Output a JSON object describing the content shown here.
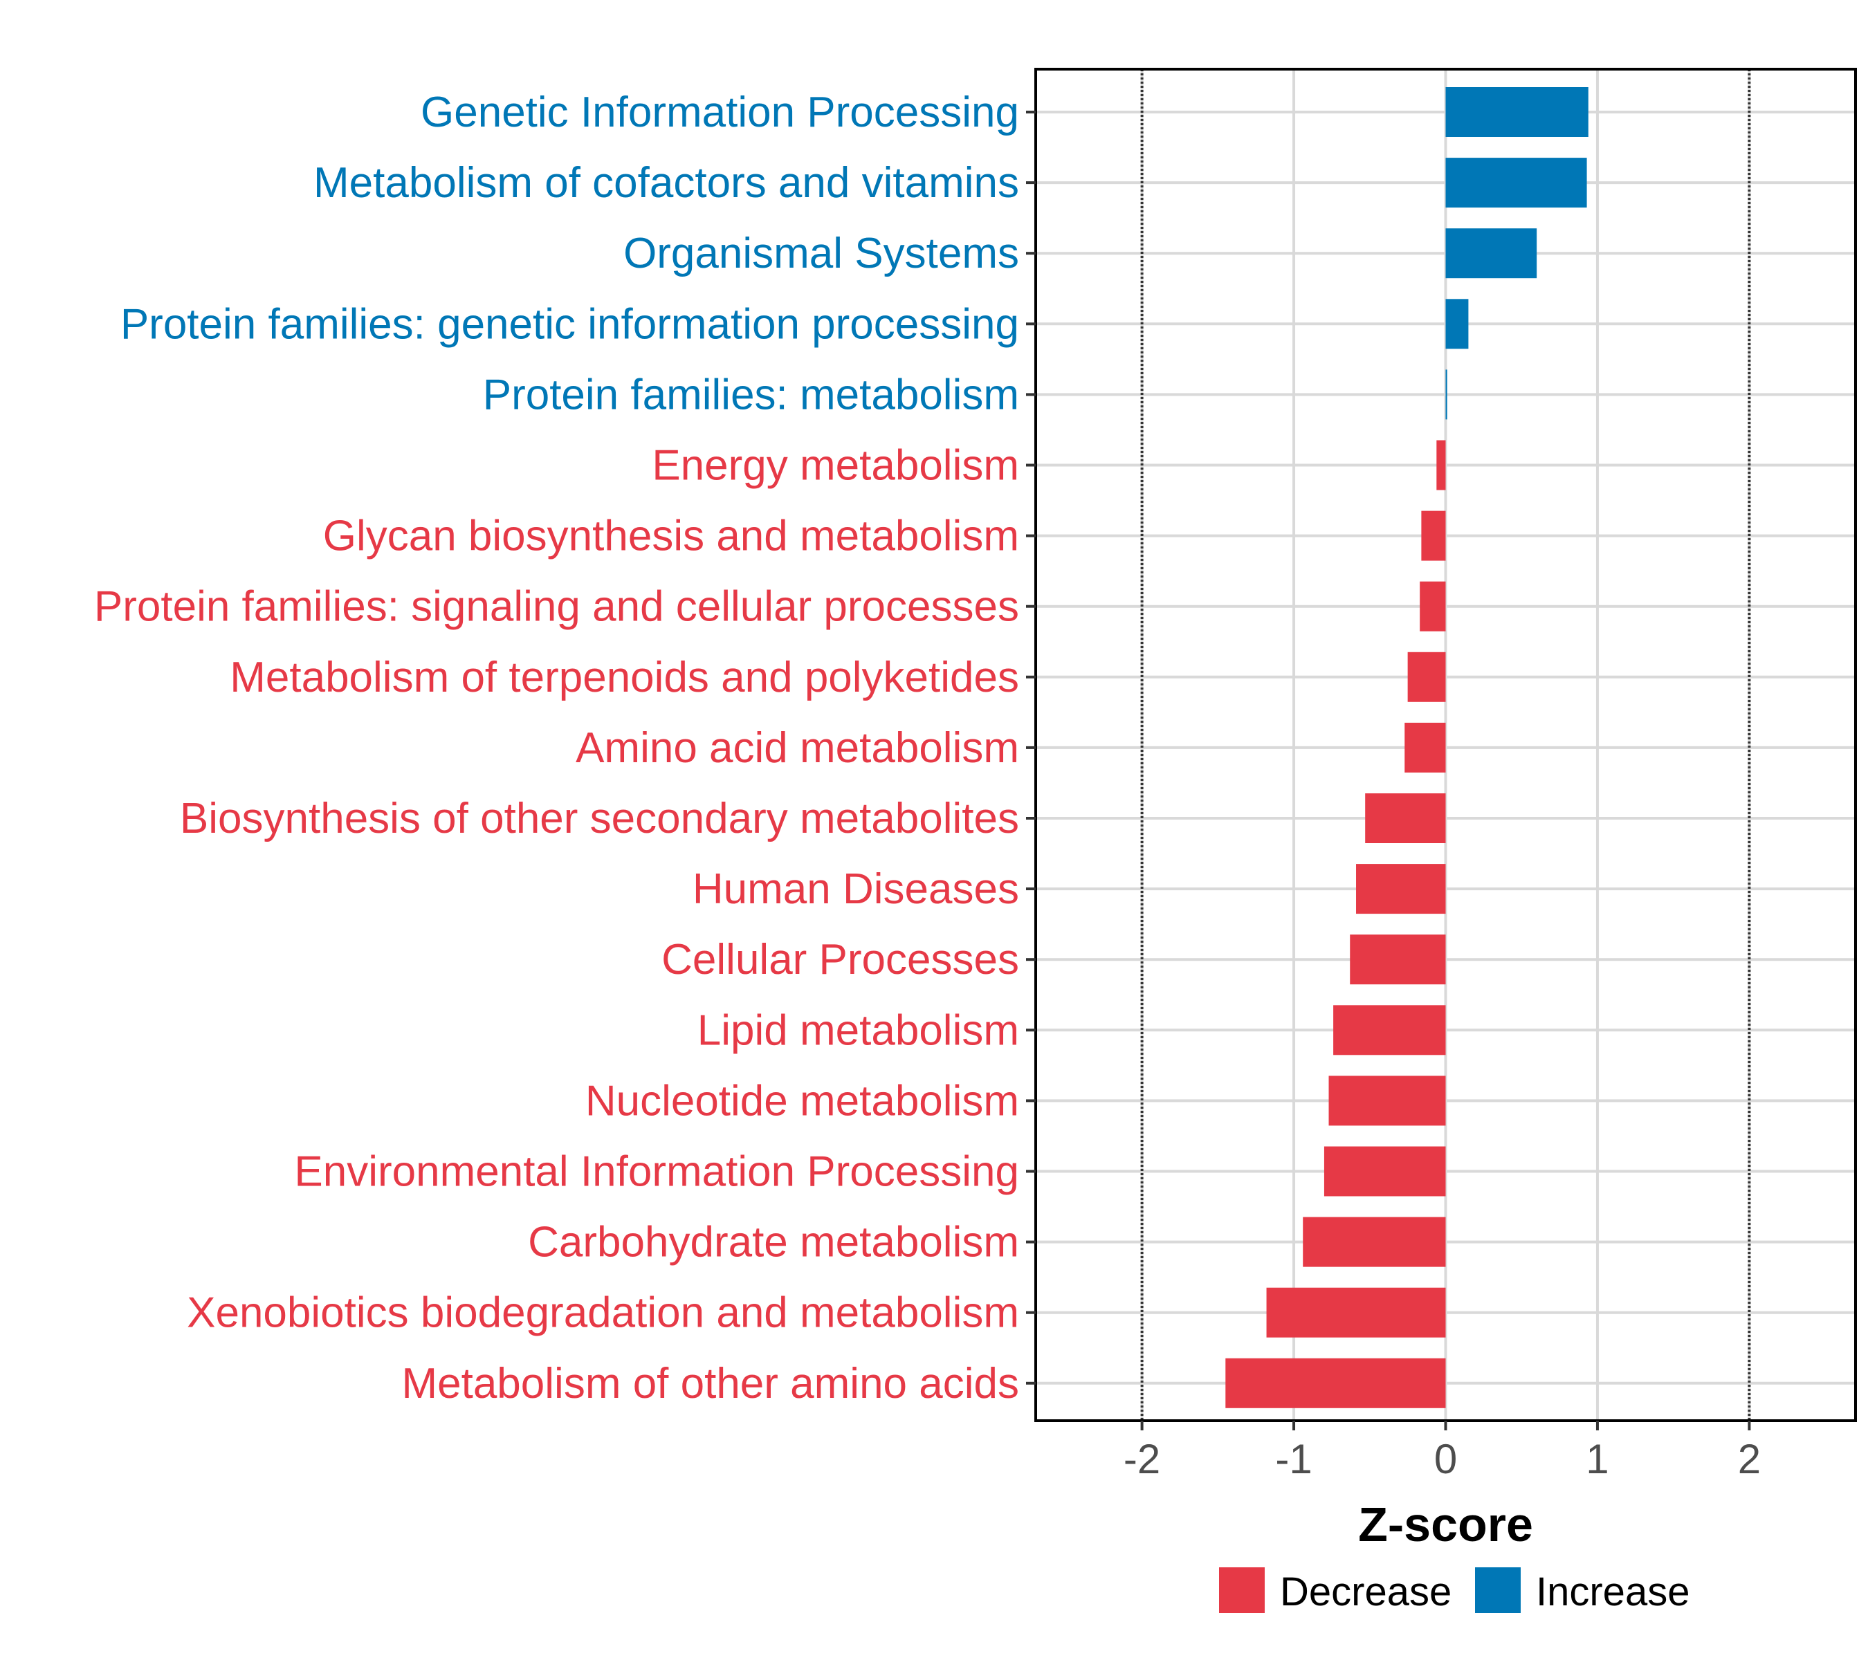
{
  "chart_data": {
    "type": "bar",
    "orientation": "horizontal",
    "xlabel": "Z-score",
    "ylabel": "",
    "xlim": [
      -2.7,
      2.7
    ],
    "xticks": [
      -2,
      -1,
      0,
      1,
      2
    ],
    "xtick_labels": [
      "-2",
      "-1",
      "0",
      "1",
      "2"
    ],
    "reference_lines": [
      -2,
      2
    ],
    "grid": true,
    "legend_position": "bottom",
    "colors": {
      "Decrease": "#E63946",
      "Increase": "#0077B6"
    },
    "legend": [
      {
        "label": "Decrease",
        "color": "#E63946"
      },
      {
        "label": "Increase",
        "color": "#0077B6"
      }
    ],
    "categories": [
      "Genetic Information Processing",
      "Metabolism of cofactors and vitamins",
      "Organismal Systems",
      "Protein families: genetic information processing",
      "Protein families: metabolism",
      "Energy metabolism",
      "Glycan biosynthesis and metabolism",
      "Protein families: signaling and cellular processes",
      "Metabolism of terpenoids and polyketides",
      "Amino acid metabolism",
      "Biosynthesis of other secondary metabolites",
      "Human Diseases",
      "Cellular Processes",
      "Lipid metabolism",
      "Nucleotide metabolism",
      "Environmental Information Processing",
      "Carbohydrate metabolism",
      "Xenobiotics biodegradation and metabolism",
      "Metabolism of other amino acids"
    ],
    "values": [
      0.94,
      0.93,
      0.6,
      0.15,
      0.01,
      -0.06,
      -0.16,
      -0.17,
      -0.25,
      -0.27,
      -0.53,
      -0.59,
      -0.63,
      -0.74,
      -0.77,
      -0.8,
      -0.94,
      -1.18,
      -1.45
    ],
    "groups": [
      "Increase",
      "Increase",
      "Increase",
      "Increase",
      "Increase",
      "Decrease",
      "Decrease",
      "Decrease",
      "Decrease",
      "Decrease",
      "Decrease",
      "Decrease",
      "Decrease",
      "Decrease",
      "Decrease",
      "Decrease",
      "Decrease",
      "Decrease",
      "Decrease"
    ]
  }
}
